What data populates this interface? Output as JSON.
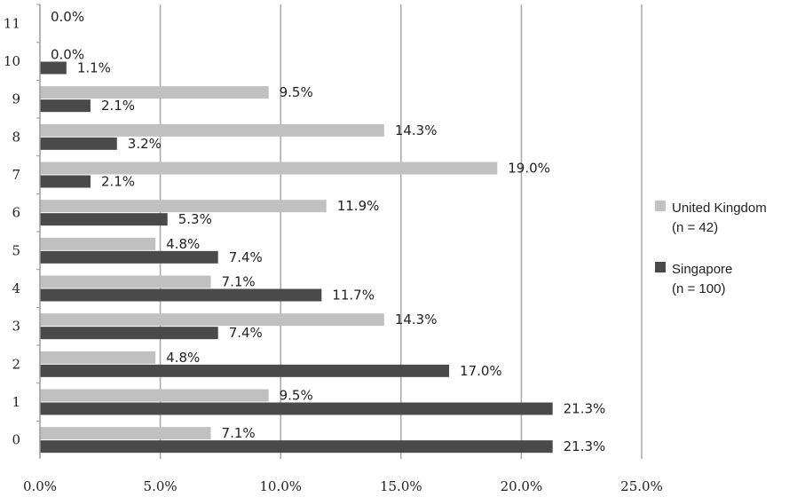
{
  "chart_data": {
    "type": "bar",
    "orientation": "horizontal",
    "categories": [
      "0",
      "1",
      "2",
      "3",
      "4",
      "5",
      "6",
      "7",
      "8",
      "9",
      "10",
      "11"
    ],
    "series": [
      {
        "name": "United Kingdom",
        "legend_note": "(n = 42)",
        "color": "#c0c0c0",
        "values": [
          7.1,
          9.5,
          4.8,
          14.3,
          7.1,
          4.8,
          11.9,
          19.0,
          14.3,
          9.5,
          0.0,
          0.0
        ],
        "labels": [
          "7.1%",
          "9.5%",
          "4.8%",
          "14.3%",
          "7.1%",
          "4.8%",
          "11.9%",
          "19.0%",
          "14.3%",
          "9.5%",
          "0.0%",
          "0.0%"
        ]
      },
      {
        "name": "Singapore",
        "legend_note": "(n = 100)",
        "color": "#4a4a4a",
        "values": [
          21.3,
          21.3,
          17.0,
          7.4,
          11.7,
          7.4,
          5.3,
          2.1,
          3.2,
          2.1,
          1.1,
          null
        ],
        "labels": [
          "21.3%",
          "21.3%",
          "17.0%",
          "7.4%",
          "11.7%",
          "7.4%",
          "5.3%",
          "2.1%",
          "3.2%",
          "2.1%",
          "1.1%",
          null
        ]
      }
    ],
    "x_ticks": [
      "0.0%",
      "5.0%",
      "10.0%",
      "15.0%",
      "20.0%",
      "25.0%"
    ],
    "xlim": [
      0,
      25
    ],
    "grid": "vertical",
    "legend_position": "right"
  }
}
